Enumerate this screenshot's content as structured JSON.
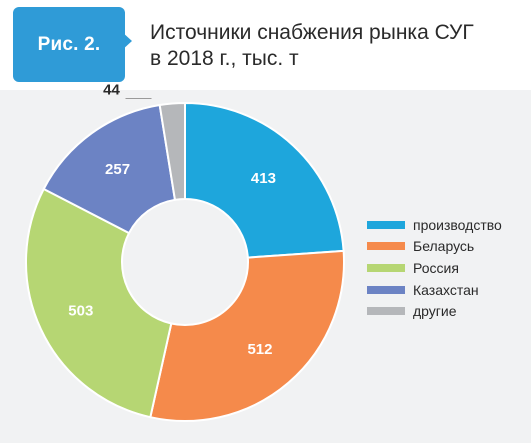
{
  "header": {
    "badge": "Рис. 2.",
    "title_line1": "Источники снабжения рынка СУГ",
    "title_line2": "в 2018 г., тыс. т"
  },
  "colors": {
    "accent": "#2f9bd7",
    "panel": "#f1f2f3"
  },
  "chart_data": {
    "type": "pie",
    "donut": true,
    "title": "Источники снабжения рынка СУГ в 2018 г., тыс. т",
    "legend_position": "right",
    "categories": [
      "производство",
      "Беларусь",
      "Россия",
      "Казахстан",
      "другие"
    ],
    "values": [
      413,
      512,
      503,
      257,
      44
    ],
    "data_labels": [
      "413",
      "512",
      "503",
      "257",
      "44"
    ],
    "colors": [
      "#1ea6dc",
      "#f58a4b",
      "#b6d673",
      "#6c83c4",
      "#b5b7ba"
    ]
  }
}
